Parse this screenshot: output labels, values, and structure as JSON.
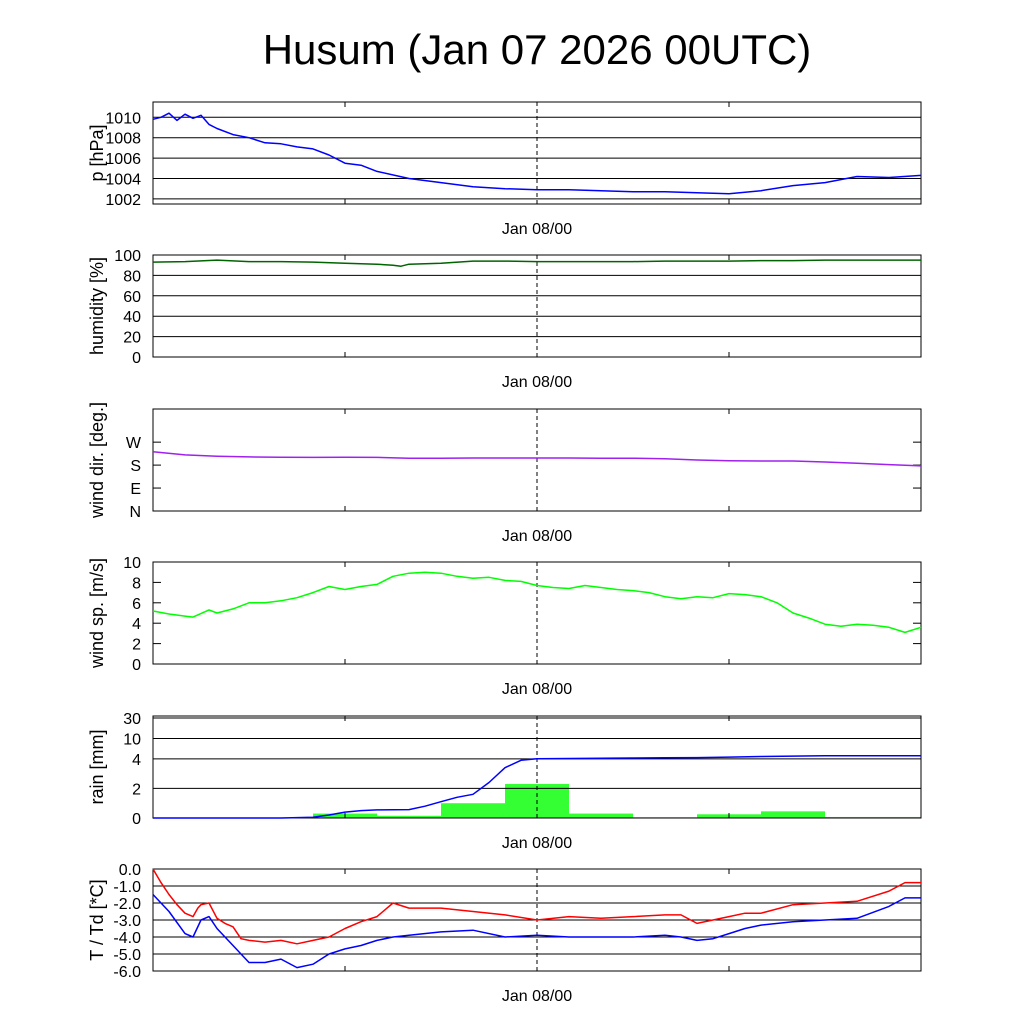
{
  "title": "Husum (Jan 07 2026 00UTC)",
  "colors": {
    "pressure": "#0000ff",
    "humidity": "#006400",
    "wind_dir": "#a020f0",
    "wind_speed": "#00ff00",
    "rain_bar": "#33ff33",
    "rain_total": "#0000ff",
    "temperature": "#ff0000",
    "dewpoint": "#0000ff",
    "grid": "#000000"
  },
  "chart_data": [
    {
      "id": "pressure",
      "type": "line",
      "ylabel": "p [hPa]",
      "xlabel": "",
      "xlim": [
        0,
        48
      ],
      "ylim": [
        1001.5,
        1011.5
      ],
      "yticks": [
        1002,
        1004,
        1006,
        1008,
        1010
      ],
      "ytick_labels": [
        "1002",
        "1004",
        "1006",
        "1008",
        "1010"
      ],
      "xtick_label": "Jan 08/00",
      "grid": true,
      "series": [
        {
          "color": "pressure",
          "x": [
            0,
            0.5,
            1,
            1.5,
            2,
            2.5,
            3,
            3.5,
            4,
            5,
            6,
            7,
            8,
            9,
            10,
            11,
            12,
            13,
            14,
            16,
            18,
            20,
            22,
            24,
            26,
            28,
            30,
            32,
            34,
            36,
            38,
            40,
            42,
            44,
            46,
            48
          ],
          "y": [
            1009.8,
            1010.0,
            1010.4,
            1009.7,
            1010.3,
            1009.9,
            1010.2,
            1009.3,
            1008.9,
            1008.3,
            1008.0,
            1007.5,
            1007.4,
            1007.1,
            1006.9,
            1006.3,
            1005.5,
            1005.3,
            1004.7,
            1004.0,
            1003.6,
            1003.2,
            1003.0,
            1002.9,
            1002.9,
            1002.8,
            1002.7,
            1002.7,
            1002.6,
            1002.5,
            1002.8,
            1003.3,
            1003.6,
            1004.2,
            1004.1,
            1004.3
          ]
        }
      ]
    },
    {
      "id": "humidity",
      "type": "line",
      "ylabel": "humidity [%]",
      "xlabel": "",
      "xlim": [
        0,
        48
      ],
      "ylim": [
        0,
        100
      ],
      "yticks": [
        0,
        20,
        40,
        60,
        80,
        100
      ],
      "ytick_labels": [
        "0",
        "20",
        "40",
        "60",
        "80",
        "100"
      ],
      "xtick_label": "Jan 08/00",
      "grid": true,
      "series": [
        {
          "color": "humidity",
          "x": [
            0,
            2,
            4,
            6,
            8,
            10,
            12,
            14,
            15,
            15.5,
            16,
            18,
            20,
            22,
            24,
            26,
            28,
            30,
            32,
            34,
            36,
            38,
            40,
            42,
            44,
            46,
            48
          ],
          "y": [
            93,
            93.5,
            95,
            93.5,
            93.5,
            93,
            92,
            91,
            90,
            89,
            91,
            92,
            94,
            94,
            93.5,
            93.5,
            93.5,
            93.5,
            94,
            94,
            94,
            94.5,
            94.5,
            95,
            95,
            95,
            95
          ]
        }
      ]
    },
    {
      "id": "wind_direction",
      "type": "line",
      "ylabel": "wind dir. [deg.]",
      "xlabel": "",
      "xlim": [
        0,
        48
      ],
      "ylim": [
        0,
        400
      ],
      "yticks": [
        0,
        90,
        180,
        270
      ],
      "ytick_labels": [
        "N",
        "E",
        "S",
        "W"
      ],
      "xtick_label": "Jan 08/00",
      "grid": false,
      "series": [
        {
          "color": "wind_dir",
          "x": [
            0,
            2,
            4,
            6,
            8,
            10,
            12,
            14,
            16,
            18,
            20,
            22,
            24,
            26,
            28,
            30,
            32,
            34,
            36,
            38,
            40,
            42,
            44,
            46,
            48
          ],
          "y": [
            232,
            220,
            215,
            212,
            211,
            210,
            211,
            210,
            207,
            207,
            208,
            208,
            208,
            208,
            207,
            207,
            205,
            200,
            197,
            196,
            196,
            192,
            187,
            182,
            177
          ]
        }
      ]
    },
    {
      "id": "wind_speed",
      "type": "line",
      "ylabel": "wind sp. [m/s]",
      "xlabel": "",
      "xlim": [
        0,
        48
      ],
      "ylim": [
        0,
        10
      ],
      "yticks": [
        0,
        2,
        4,
        6,
        8,
        10
      ],
      "ytick_labels": [
        "0",
        "2",
        "4",
        "6",
        "8",
        "10"
      ],
      "xtick_label": "Jan 08/00",
      "grid": false,
      "series": [
        {
          "color": "wind_speed",
          "x": [
            0,
            1,
            2,
            2.5,
            3.5,
            4,
            5,
            6,
            7,
            8,
            9,
            10,
            11,
            12,
            13,
            14,
            15,
            16,
            17,
            18,
            19,
            20,
            21,
            22,
            23,
            24,
            25,
            26,
            27,
            28,
            29,
            30,
            31,
            32,
            33,
            34,
            35,
            36,
            37,
            38,
            39,
            40,
            41,
            42,
            43,
            44,
            45,
            46,
            47,
            48
          ],
          "y": [
            5.2,
            4.9,
            4.7,
            4.6,
            5.3,
            5.0,
            5.4,
            6.0,
            6.0,
            6.2,
            6.5,
            7.0,
            7.6,
            7.3,
            7.6,
            7.8,
            8.6,
            8.9,
            9.0,
            8.9,
            8.6,
            8.4,
            8.5,
            8.2,
            8.1,
            7.7,
            7.5,
            7.4,
            7.7,
            7.5,
            7.3,
            7.2,
            7.0,
            6.6,
            6.4,
            6.6,
            6.5,
            6.9,
            6.8,
            6.6,
            6.0,
            5.0,
            4.5,
            3.9,
            3.7,
            3.9,
            3.8,
            3.6,
            3.1,
            3.6
          ]
        }
      ]
    },
    {
      "id": "rain",
      "type": "bar",
      "ylabel": "rain [mm]",
      "xlabel": "",
      "xlim": [
        0,
        48
      ],
      "ylim": [
        0,
        30
      ],
      "yticks": [
        0,
        2,
        4,
        10,
        30
      ],
      "ytick_labels": [
        "0",
        "2",
        "4",
        "10",
        "30"
      ],
      "xtick_label": "Jan 08/00",
      "grid": true,
      "series": [
        {
          "kind": "bars",
          "color": "rain_bar",
          "bins": [
            [
              0,
              4,
              0
            ],
            [
              4,
              8,
              0
            ],
            [
              8,
              10,
              0
            ],
            [
              10,
              14,
              0.3
            ],
            [
              14,
              18,
              0.15
            ],
            [
              18,
              22,
              1.0
            ],
            [
              22,
              26,
              2.3
            ],
            [
              26,
              30,
              0.3
            ],
            [
              30,
              34,
              0.05
            ],
            [
              34,
              38,
              0.25
            ],
            [
              38,
              42,
              0.45
            ],
            [
              42,
              48,
              0.07
            ]
          ]
        },
        {
          "kind": "line",
          "color": "rain_total",
          "x": [
            0,
            8,
            10,
            11,
            12,
            13,
            14,
            15,
            16,
            17,
            18,
            19,
            20,
            21,
            22,
            23,
            24,
            26,
            28,
            30,
            32,
            34,
            36,
            38,
            40,
            42,
            44,
            46,
            48
          ],
          "y": [
            0,
            0,
            0.05,
            0.2,
            0.4,
            0.5,
            0.55,
            0.56,
            0.57,
            0.8,
            1.1,
            1.4,
            1.6,
            2.4,
            3.4,
            3.9,
            4.0,
            4.1,
            4.2,
            4.25,
            4.3,
            4.35,
            4.5,
            4.7,
            4.8,
            4.9,
            4.9,
            4.9,
            4.9
          ]
        }
      ]
    },
    {
      "id": "temperature",
      "type": "line",
      "ylabel": "T / Td [*C]",
      "xlabel": "",
      "xlim": [
        0,
        48
      ],
      "ylim": [
        -6,
        0
      ],
      "yticks": [
        0,
        -1,
        -2,
        -3,
        -4,
        -5,
        -6
      ],
      "ytick_labels": [
        "0.0",
        "-1.0",
        "-2.0",
        "-3.0",
        "-4.0",
        "-5.0",
        "-6.0"
      ],
      "xtick_label": "Jan 08/00",
      "grid": true,
      "series": [
        {
          "color": "temperature",
          "x": [
            0,
            0.5,
            1,
            1.5,
            2,
            2.5,
            2.8,
            3,
            3.5,
            4,
            4.5,
            5,
            5.5,
            6,
            7,
            8,
            9,
            10,
            11,
            12,
            13,
            14,
            15,
            16,
            18,
            20,
            22,
            24,
            26,
            28,
            30,
            32,
            33,
            34,
            35,
            36,
            37,
            38,
            40,
            42,
            44,
            46,
            47,
            48
          ],
          "y": [
            0,
            -0.8,
            -1.5,
            -2.1,
            -2.6,
            -2.8,
            -2.3,
            -2.1,
            -2.0,
            -2.9,
            -3.2,
            -3.4,
            -4.1,
            -4.2,
            -4.3,
            -4.2,
            -4.4,
            -4.2,
            -4.0,
            -3.5,
            -3.1,
            -2.8,
            -2.0,
            -2.3,
            -2.3,
            -2.5,
            -2.7,
            -3.0,
            -2.8,
            -2.9,
            -2.8,
            -2.7,
            -2.7,
            -3.2,
            -3.0,
            -2.8,
            -2.6,
            -2.6,
            -2.1,
            -2.0,
            -1.9,
            -1.3,
            -0.8,
            -0.8
          ]
        },
        {
          "color": "dewpoint",
          "x": [
            0,
            1,
            2,
            2.5,
            3,
            3.5,
            4,
            5,
            6,
            7,
            8,
            9,
            10,
            11,
            12,
            13,
            14,
            15,
            16,
            18,
            20,
            22,
            24,
            26,
            28,
            30,
            32,
            33,
            34,
            35,
            36,
            37,
            38,
            40,
            42,
            44,
            46,
            47,
            48
          ],
          "y": [
            -1.5,
            -2.5,
            -3.8,
            -4.0,
            -3.0,
            -2.8,
            -3.5,
            -4.5,
            -5.5,
            -5.5,
            -5.3,
            -5.8,
            -5.6,
            -5.0,
            -4.7,
            -4.5,
            -4.2,
            -4.0,
            -3.9,
            -3.7,
            -3.6,
            -4.0,
            -3.9,
            -4.0,
            -4.0,
            -4.0,
            -3.9,
            -4.0,
            -4.2,
            -4.1,
            -3.8,
            -3.5,
            -3.3,
            -3.1,
            -3.0,
            -2.9,
            -2.2,
            -1.7,
            -1.7
          ]
        }
      ]
    }
  ]
}
